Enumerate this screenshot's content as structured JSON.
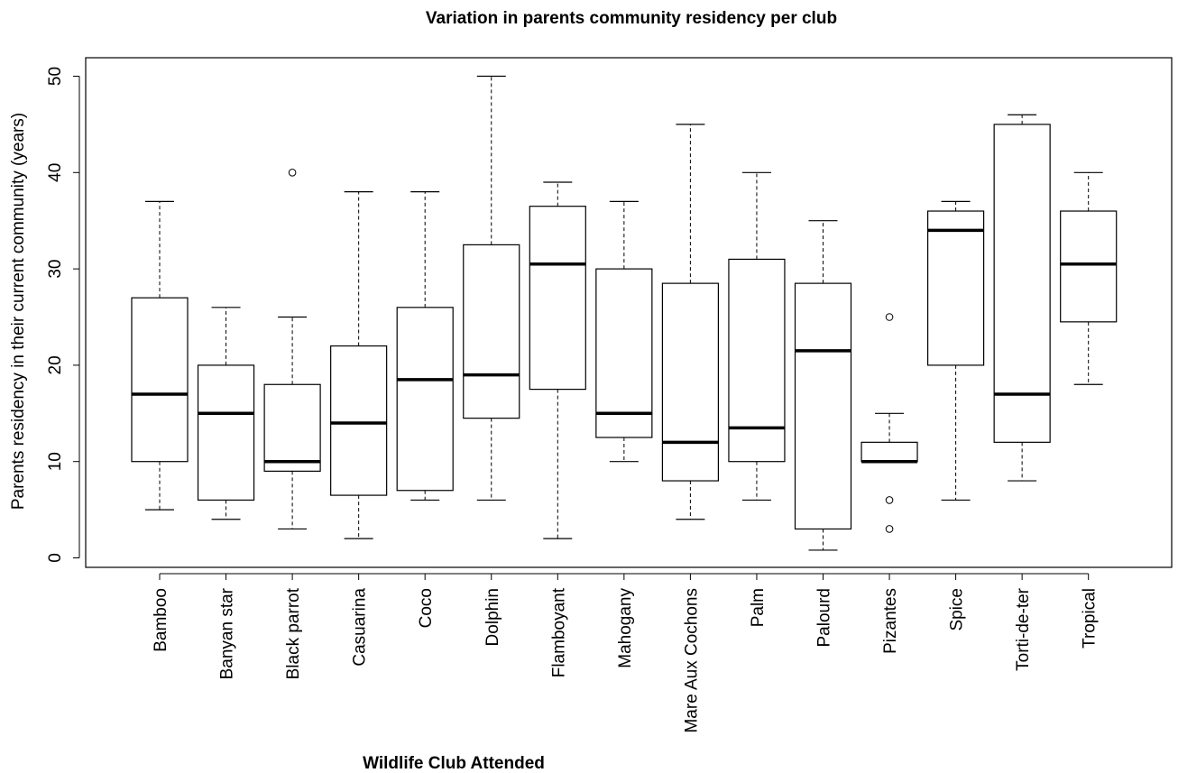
{
  "chart_data": {
    "type": "boxplot",
    "title": "Variation in parents community residency per club",
    "xlabel": "Wildlife Club Attended",
    "ylabel": "Parents residency in their current community (years)",
    "ylim": [
      -1,
      51
    ],
    "yticks": [
      0,
      10,
      20,
      30,
      40,
      50
    ],
    "grid": false,
    "categories": [
      "Bamboo",
      "Banyan star",
      "Black parrot",
      "Casuarina",
      "Coco",
      "Dolphin",
      "Flamboyant",
      "Mahogany",
      "Mare Aux Cochons",
      "Palm",
      "Palourd",
      "Pizantes",
      "Spice",
      "Torti-de-ter",
      "Tropical"
    ],
    "boxes": [
      {
        "min": 5,
        "q1": 10,
        "median": 17,
        "q3": 27,
        "max": 37,
        "outliers": []
      },
      {
        "min": 4,
        "q1": 6,
        "median": 15,
        "q3": 20,
        "max": 26,
        "outliers": []
      },
      {
        "min": 3,
        "q1": 9,
        "median": 10,
        "q3": 18,
        "max": 25,
        "outliers": [
          40
        ]
      },
      {
        "min": 2,
        "q1": 6.5,
        "median": 14,
        "q3": 22,
        "max": 38,
        "outliers": []
      },
      {
        "min": 6,
        "q1": 7,
        "median": 18.5,
        "q3": 26,
        "max": 38,
        "outliers": []
      },
      {
        "min": 6,
        "q1": 14.5,
        "median": 19,
        "q3": 32.5,
        "max": 50,
        "outliers": []
      },
      {
        "min": 2,
        "q1": 17.5,
        "median": 30.5,
        "q3": 36.5,
        "max": 39,
        "outliers": []
      },
      {
        "min": 10,
        "q1": 12.5,
        "median": 15,
        "q3": 30,
        "max": 37,
        "outliers": []
      },
      {
        "min": 4,
        "q1": 8,
        "median": 12,
        "q3": 28.5,
        "max": 45,
        "outliers": []
      },
      {
        "min": 6,
        "q1": 10,
        "median": 13.5,
        "q3": 31,
        "max": 40,
        "outliers": []
      },
      {
        "min": 0.8,
        "q1": 3,
        "median": 21.5,
        "q3": 28.5,
        "max": 35,
        "outliers": []
      },
      {
        "min": 10,
        "q1": 10,
        "median": 10,
        "q3": 12,
        "max": 15,
        "outliers": [
          25,
          6,
          3
        ]
      },
      {
        "min": 6,
        "q1": 20,
        "median": 34,
        "q3": 36,
        "max": 37,
        "outliers": []
      },
      {
        "min": 8,
        "q1": 12,
        "median": 17,
        "q3": 45,
        "max": 46,
        "outliers": []
      },
      {
        "min": 18,
        "q1": 24.5,
        "median": 30.5,
        "q3": 36,
        "max": 40,
        "outliers": []
      }
    ]
  }
}
